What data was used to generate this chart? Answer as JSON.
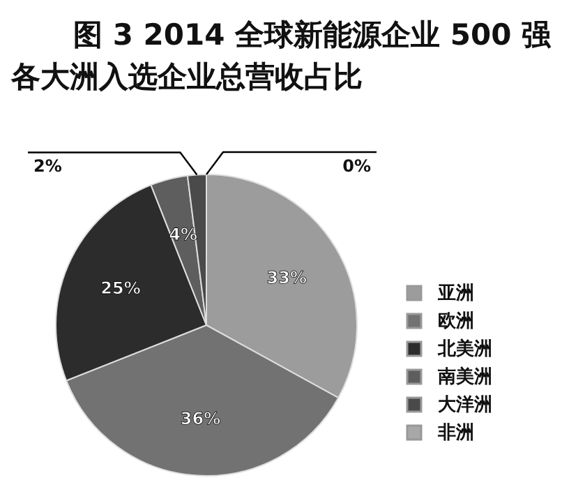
{
  "chart_data": {
    "type": "pie",
    "title": "图 3  2014 全球新能源企业 500 强",
    "subtitle": "各大洲入选企业总营收占比",
    "categories": [
      "亚洲",
      "欧洲",
      "北美洲",
      "南美洲",
      "大洋洲",
      "非洲"
    ],
    "values": [
      33,
      36,
      25,
      4,
      2,
      0
    ],
    "value_labels": [
      "33%",
      "36%",
      "25%",
      "4%",
      "2%",
      "0%"
    ],
    "colors": [
      "#9c9c9c",
      "#727272",
      "#2c2c2c",
      "#5e5e5e",
      "#4a4a4a",
      "#a8a8a8"
    ],
    "legend": "right"
  }
}
